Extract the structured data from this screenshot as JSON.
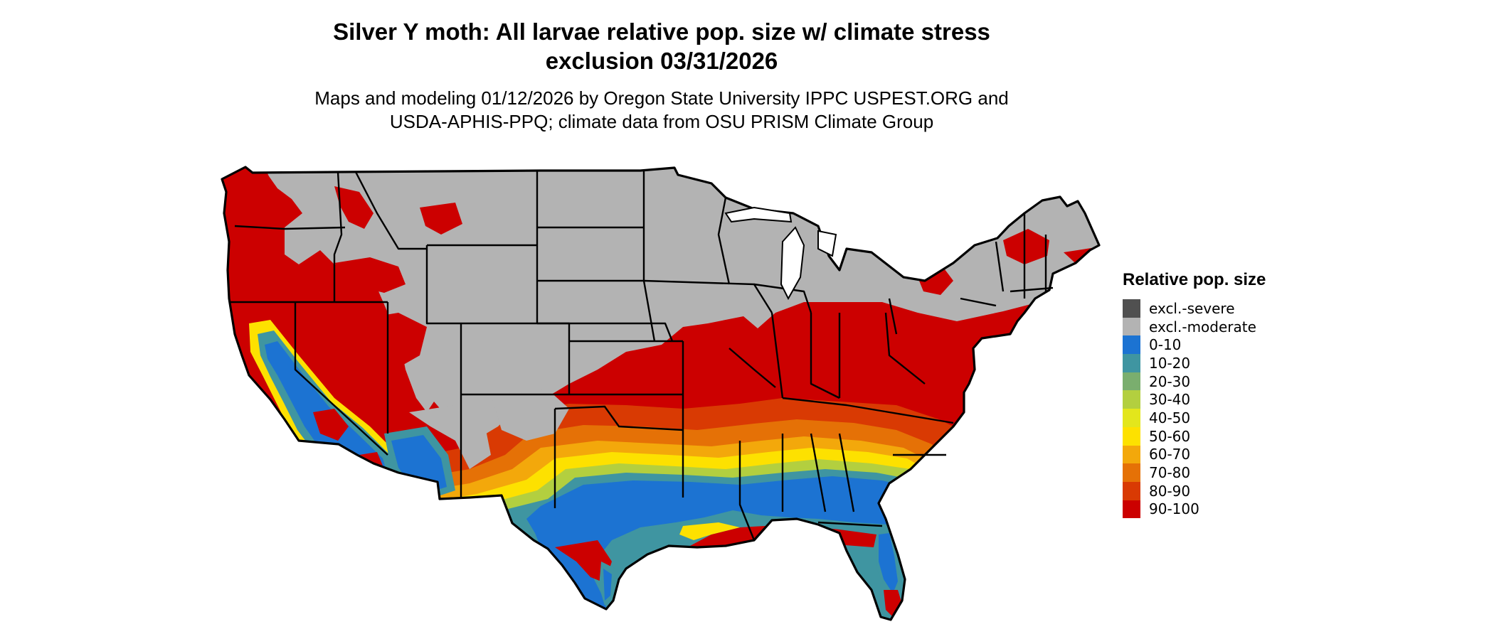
{
  "title_line1": "Silver Y moth: All larvae relative pop. size w/ climate stress",
  "title_line2": "exclusion 03/31/2026",
  "subtitle_line1": "Maps and modeling 01/12/2026 by Oregon State University IPPC USPEST.ORG and",
  "subtitle_line2": "USDA-APHIS-PPQ; climate data from OSU PRISM Climate Group",
  "map_subject": "contiguous-united-states",
  "legend": {
    "title": "Relative pop. size",
    "items": [
      {
        "label": "excl.-severe",
        "color": "#505050"
      },
      {
        "label": "excl.-moderate",
        "color": "#b3b3b3"
      },
      {
        "label": "0-10",
        "color": "#1c73d2"
      },
      {
        "label": "10-20",
        "color": "#3f95a1"
      },
      {
        "label": "20-30",
        "color": "#7aae6e"
      },
      {
        "label": "30-40",
        "color": "#b3cf3f"
      },
      {
        "label": "40-50",
        "color": "#e3e61c"
      },
      {
        "label": "50-60",
        "color": "#fde100"
      },
      {
        "label": "60-70",
        "color": "#f3a80b"
      },
      {
        "label": "70-80",
        "color": "#e57106"
      },
      {
        "label": "80-90",
        "color": "#d93a03"
      },
      {
        "label": "90-100",
        "color": "#cc0000"
      }
    ]
  }
}
